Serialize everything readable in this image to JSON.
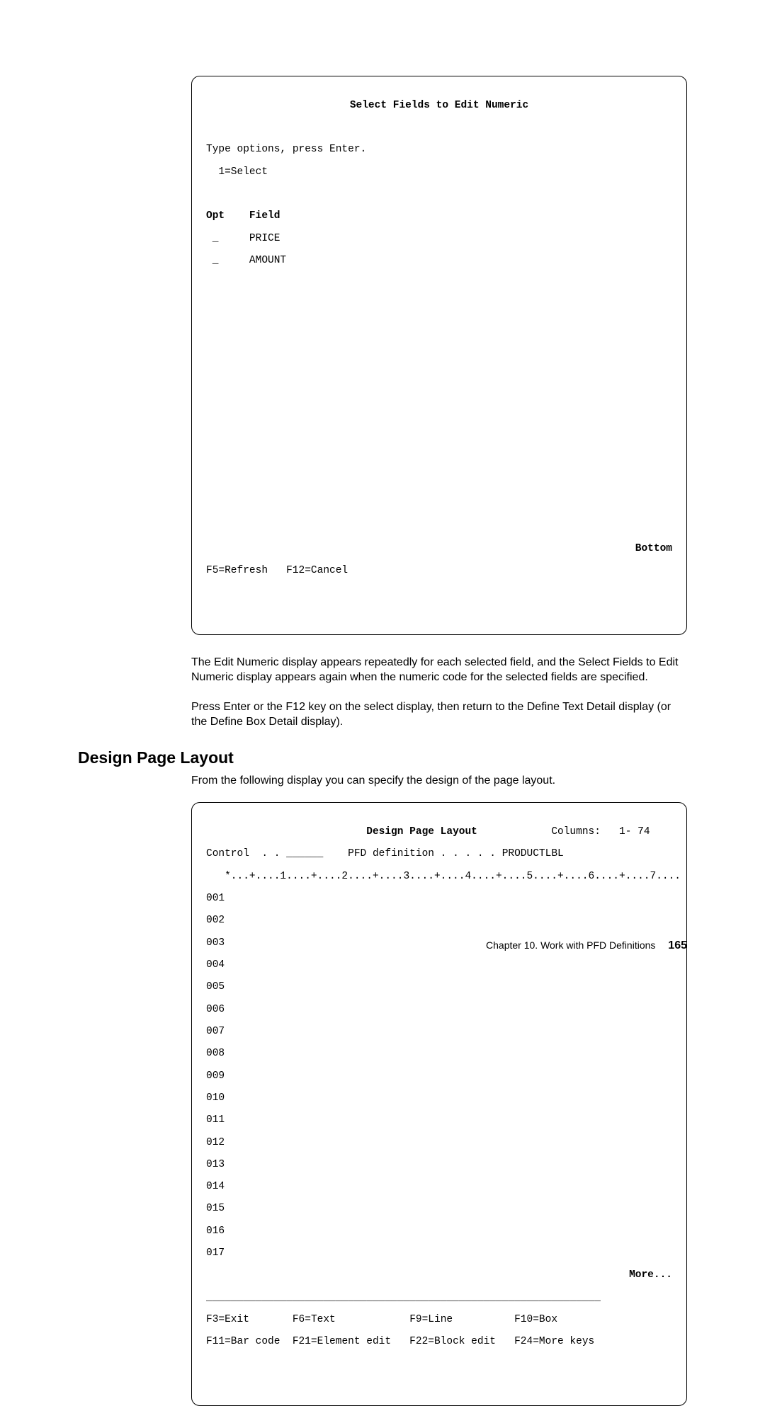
{
  "terminal1": {
    "title": "Select Fields to Edit Numeric",
    "instructions_line1": "Type options, press Enter.",
    "instructions_line2": "  1=Select",
    "header_line": "Opt    Field",
    "rows": [
      " _     PRICE",
      " _     AMOUNT"
    ],
    "bottom_indicator": "Bottom",
    "fkeys": "F5=Refresh   F12=Cancel"
  },
  "para1": "The Edit Numeric display appears repeatedly for each selected field, and the Select Fields to Edit Numeric display appears again when the numeric code for the selected fields are specified.",
  "para2": "Press Enter or the F12 key on the select display, then return to the Define Text Detail display (or the Define Box Detail display).",
  "heading": "Design Page Layout",
  "para3": "From the following display you can specify the design of the page layout.",
  "terminal2": {
    "title_segment": "Design Page Layout",
    "columns_label": "Columns:",
    "columns_value": "1- 74",
    "control_label": "Control  . .",
    "control_underline": "______",
    "pfd_label": "PFD definition . . . . .",
    "pfd_value": "PRODUCTLBL",
    "ruler": "   *...+....1....+....2....+....3....+....4....+....5....+....6....+....7....",
    "line_numbers": [
      "001",
      "002",
      "003",
      "004",
      "005",
      "006",
      "007",
      "008",
      "009",
      "010",
      "011",
      "012",
      "013",
      "014",
      "015",
      "016",
      "017"
    ],
    "more_indicator": "More...",
    "separator": "________________________________________________________________",
    "fkeys_line1_f3": "F3=Exit",
    "fkeys_line1_f6": "F6=Text",
    "fkeys_line1_f9": "F9=Line",
    "fkeys_line1_f10": "F10=Box",
    "fkeys_line2_f11": "F11=Bar code",
    "fkeys_line2_f21": "F21=Element edit",
    "fkeys_line2_f22": "F22=Block edit",
    "fkeys_line2_f24": "F24=More keys"
  },
  "footer": {
    "chapter": "Chapter 10.  Work with PFD Definitions",
    "page": "165"
  }
}
